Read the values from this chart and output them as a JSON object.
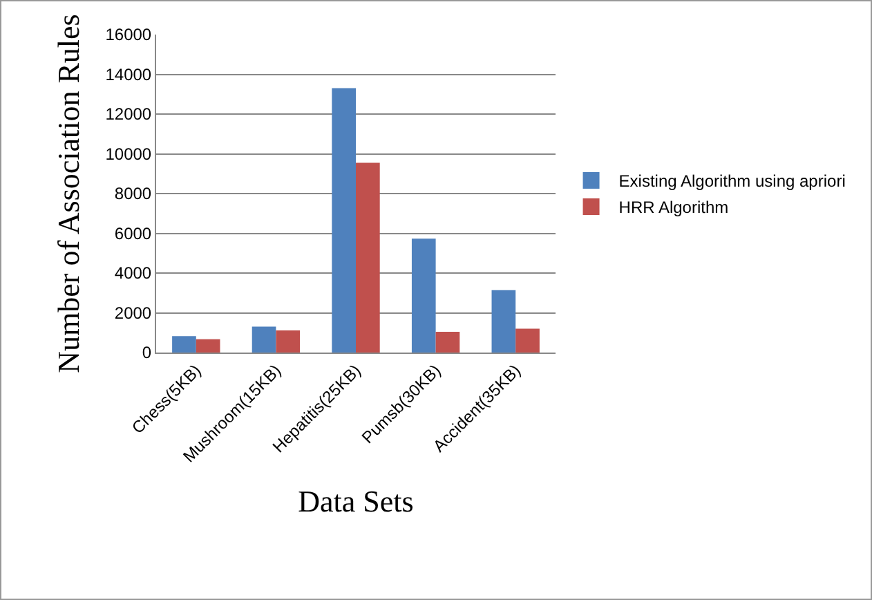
{
  "chart_data": {
    "type": "bar",
    "xlabel": "Data Sets",
    "ylabel": "Number of Association Rules",
    "categories": [
      "Chess(5KB)",
      "Mushroom(15KB)",
      "Hepatitis(25KB)",
      "Pumsb(30KB)",
      "Accident(35KB)"
    ],
    "series": [
      {
        "name": "Existing Algorithm using apriori",
        "color": "#4f81bd",
        "values": [
          830,
          1300,
          13300,
          5730,
          3140
        ]
      },
      {
        "name": "HRR Algorithm",
        "color": "#c0504d",
        "values": [
          670,
          1110,
          9550,
          1040,
          1200
        ]
      }
    ],
    "ylim": [
      0,
      16000
    ],
    "yticks": [
      0,
      2000,
      4000,
      6000,
      8000,
      10000,
      12000,
      14000,
      16000
    ],
    "grid": "y",
    "legend": "right"
  }
}
